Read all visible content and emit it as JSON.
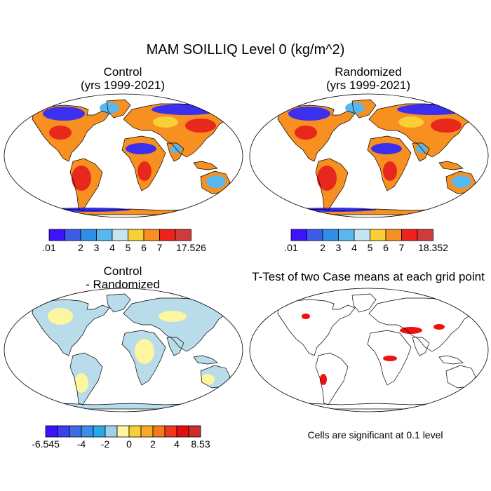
{
  "main_title": "MAM SOILLIQ Level 0 (kg/m^2)",
  "panels": {
    "control": {
      "title_line1": "Control",
      "title_line2": "(yrs 1999-2021)"
    },
    "randomized": {
      "title_line1": "Randomized",
      "title_line2": "(yrs 1999-2021)"
    },
    "difference": {
      "title_line1": "Control",
      "title_line2": "- Randomized"
    },
    "ttest": {
      "title": "T-Test of two Case means at each grid point",
      "note": "Cells are significant at 0.1 level"
    }
  },
  "colorbars": {
    "control": {
      "colors": [
        "#3d12ff",
        "#3e5be8",
        "#2f8fe6",
        "#58b7ee",
        "#c4e4f0",
        "#f8d035",
        "#f79020",
        "#f0211c",
        "#d03a3a"
      ],
      "labels": [
        ".01",
        "2",
        "3",
        "4",
        "5",
        "6",
        "7",
        "17.526"
      ]
    },
    "randomized": {
      "colors": [
        "#3d12ff",
        "#3e5be8",
        "#2f8fe6",
        "#58b7ee",
        "#c4e4f0",
        "#f8d035",
        "#f79020",
        "#f0211c",
        "#d03a3a"
      ],
      "labels": [
        ".01",
        "2",
        "3",
        "4",
        "5",
        "6",
        "7",
        "18.352"
      ]
    },
    "difference": {
      "colors": [
        "#3d12ff",
        "#3a3ff0",
        "#3d6de6",
        "#3a8ee8",
        "#29a8e8",
        "#9ed0ea",
        "#fdf5a0",
        "#f8d035",
        "#f7a928",
        "#f47a1c",
        "#ee3a1a",
        "#e01010",
        "#cc2b30"
      ],
      "labels": [
        "-6.545",
        "-4",
        "-2",
        "0",
        "2",
        "4",
        "8.53"
      ]
    }
  },
  "map_colors": {
    "ocean": "#ffffff",
    "coast": "#000000",
    "wet": "#3a30ee",
    "mid_blue": "#58b7ee",
    "dry_red": "#e8281c",
    "orange": "#f79020",
    "yellow": "#f8d035",
    "diff_blue": "#b9dcea",
    "diff_yellow": "#fdf5a0",
    "sig_red": "#ee1111"
  }
}
